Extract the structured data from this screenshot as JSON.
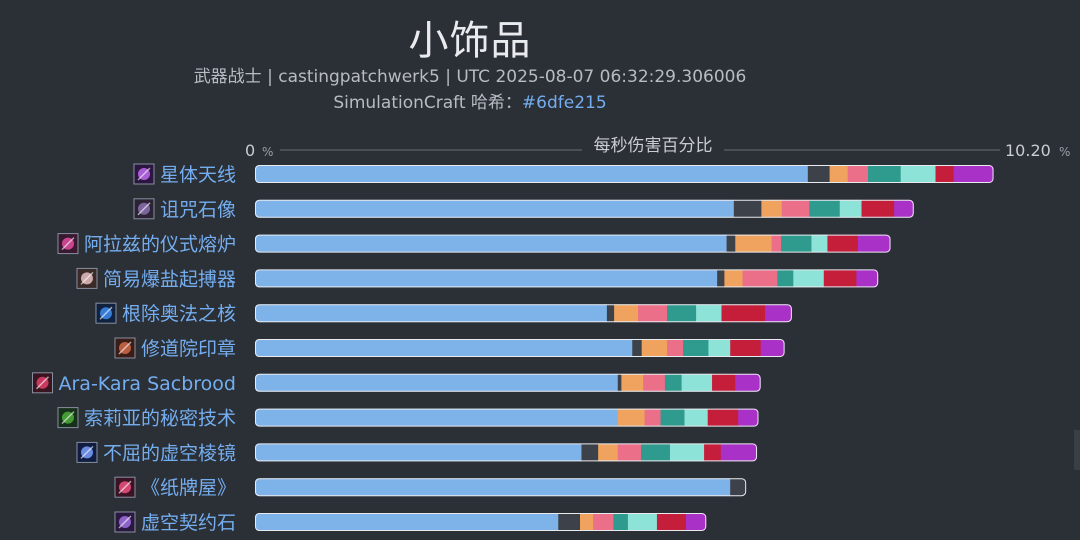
{
  "header": {
    "title": "小饰品",
    "subtitle": "武器战士 | castingpatchwerk5 | UTC 2025-08-07 06:32:29.306006",
    "subtitle2_prefix": "SimulationCraft 哈希：",
    "subtitle2_hash": "#6dfe215"
  },
  "chart_data": {
    "type": "bar",
    "stacked": true,
    "orientation": "horizontal",
    "title": "每秒伤害百分比",
    "axis_min_label": "0",
    "axis_max_label": "10.20",
    "axis_unit": "%",
    "xlim": [
      0,
      10.2
    ],
    "categories": [
      "星体天线",
      "诅咒石像",
      "阿拉兹的仪式熔炉",
      "简易爆盐起搏器",
      "根除奥法之核",
      "修道院印章",
      "Ara-Kara Sacbrood",
      "索莉亚的秘密技术",
      "不屈的虚空棱镜",
      "《纸牌屋》",
      "虚空契约石"
    ],
    "icon_names": [
      "astral-antenna-icon",
      "cursed-statue-icon",
      "ritual-forge-icon",
      "salt-pacemaker-icon",
      "arcane-core-icon",
      "priory-seal-icon",
      "ara-kara-sacbrood-icon",
      "soleah-tech-icon",
      "void-prism-icon",
      "house-of-cards-icon",
      "void-pact-stone-icon"
    ],
    "segment_colors": [
      "#7eb3ea",
      "#3d4149",
      "#f0a35e",
      "#ec6f8a",
      "#2f9a8e",
      "#8ee3d8",
      "#c41e3a",
      "#a931c8"
    ],
    "segments": [
      [
        7.62,
        0.3,
        0.25,
        0.28,
        0.45,
        0.48,
        0.25,
        0.55
      ],
      [
        6.6,
        0.38,
        0.28,
        0.38,
        0.42,
        0.3,
        0.45,
        0.27
      ],
      [
        6.5,
        0.12,
        0.5,
        0.13,
        0.42,
        0.22,
        0.42,
        0.45
      ],
      [
        6.37,
        0.1,
        0.25,
        0.48,
        0.22,
        0.42,
        0.45,
        0.3
      ],
      [
        4.85,
        0.1,
        0.33,
        0.4,
        0.4,
        0.35,
        0.6,
        0.37
      ],
      [
        5.2,
        0.13,
        0.35,
        0.22,
        0.35,
        0.3,
        0.42,
        0.33
      ],
      [
        5.0,
        0.05,
        0.3,
        0.3,
        0.23,
        0.42,
        0.32,
        0.35
      ],
      [
        5.0,
        0.0,
        0.37,
        0.22,
        0.33,
        0.32,
        0.42,
        0.28
      ],
      [
        4.5,
        0.23,
        0.27,
        0.32,
        0.4,
        0.47,
        0.23,
        0.5
      ],
      [
        6.55,
        0.22,
        0.0,
        0.0,
        0.0,
        0.0,
        0.0,
        0.0
      ],
      [
        4.18,
        0.3,
        0.18,
        0.28,
        0.2,
        0.4,
        0.4,
        0.28
      ]
    ],
    "grid": false
  }
}
